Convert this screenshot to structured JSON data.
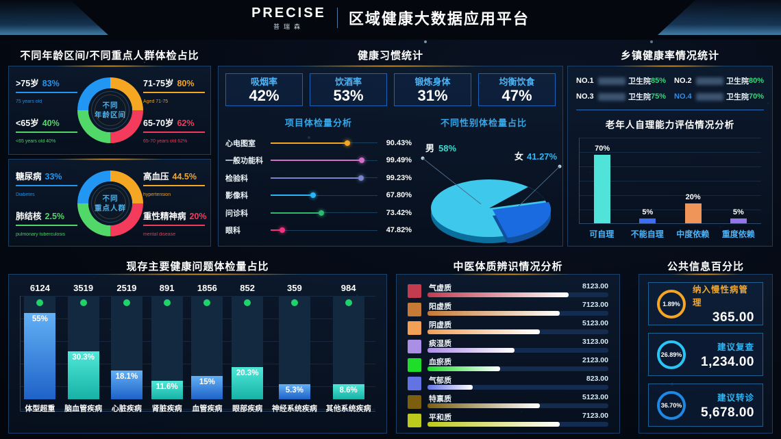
{
  "header": {
    "logo": "PRECISE",
    "logo_sub": "普瑞森",
    "title": "区域健康大数据应用平台"
  },
  "sections": {
    "demographics_title": "不同年龄区间/不同重点人群体检占比",
    "habits_title": "健康习惯统计",
    "township_title": "乡镇健康率情况统计",
    "problems_title": "现存主要健康问题体检量占比",
    "tcm_title": "中医体质辨识情况分析",
    "public_title": "公共信息百分比"
  },
  "age_donut": {
    "center_line1": "不同",
    "center_line2": "年龄区间",
    "items": [
      {
        "label": ">75岁",
        "value": "83%",
        "sub": "75 years old",
        "color": "#2196f3",
        "pos": "tl"
      },
      {
        "label": "71-75岁",
        "value": "80%",
        "sub": "Aged 71-75",
        "color": "#f5a623",
        "pos": "tr"
      },
      {
        "label": "<65岁",
        "value": "40%",
        "sub": "<65 years old 40%",
        "color": "#52d769",
        "pos": "bl"
      },
      {
        "label": "65-70岁",
        "value": "62%",
        "sub": "65-70 years old 62%",
        "color": "#f43b5c",
        "pos": "br"
      }
    ]
  },
  "group_donut": {
    "center_line1": "不同",
    "center_line2": "重点人群",
    "items": [
      {
        "label": "糖尿病",
        "value": "33%",
        "sub": "Diabetes",
        "color": "#2196f3",
        "pos": "tl"
      },
      {
        "label": "高血压",
        "value": "44.5%",
        "sub": "hypertension",
        "color": "#f5a623",
        "pos": "tr"
      },
      {
        "label": "肺结核",
        "value": "2.5%",
        "sub": "pulmonary tuberculosis",
        "color": "#52d769",
        "pos": "bl"
      },
      {
        "label": "重性精神病",
        "value": "20%",
        "sub": "mental disease",
        "color": "#f43b5c",
        "pos": "br"
      }
    ]
  },
  "habit_stats": [
    {
      "label": "吸烟率",
      "value": "42%"
    },
    {
      "label": "饮酒率",
      "value": "53%"
    },
    {
      "label": "锻炼身体",
      "value": "31%"
    },
    {
      "label": "均衡饮食",
      "value": "47%"
    }
  ],
  "exam": {
    "title": "项目体检量分析",
    "rows": [
      {
        "label": "心电图室",
        "value": "90.43%",
        "num": 90.43,
        "color": "#f5a623"
      },
      {
        "label": "一般功能科",
        "value": "99.49%",
        "num": 99.49,
        "color": "#d36fc8"
      },
      {
        "label": "检验科",
        "value": "99.23%",
        "num": 99.23,
        "color": "#7986cb"
      },
      {
        "label": "影像科",
        "value": "67.80%",
        "num": 67.8,
        "color": "#29b6f6"
      },
      {
        "label": "问诊科",
        "value": "73.42%",
        "num": 73.42,
        "color": "#2eb872"
      },
      {
        "label": "眼科",
        "value": "47.82%",
        "num": 47.82,
        "color": "#f5317f"
      }
    ]
  },
  "gender": {
    "title": "不同性别体检量占比",
    "male_label": "男",
    "male_value": "58%",
    "female_label": "女",
    "female_value": "41.27%"
  },
  "township": {
    "rows": [
      {
        "rank": "NO.1",
        "suffix": "卫生院",
        "value": "85%",
        "name_redacted": true
      },
      {
        "rank": "NO.2",
        "suffix": "卫生院",
        "value": "80%",
        "name_redacted": true
      },
      {
        "rank": "NO.3",
        "suffix": "卫生院",
        "value": "75%",
        "name_redacted": true
      },
      {
        "rank": "NO.4",
        "suffix": "卫生院",
        "value": "70%",
        "name_redacted": true
      }
    ]
  },
  "elderly": {
    "title": "老年人自理能力评估情况分析",
    "bars": [
      {
        "label": "可自理",
        "value": "70%",
        "num": 70,
        "color": "#4fe3da"
      },
      {
        "label": "不能自理",
        "value": "5%",
        "num": 5,
        "color": "#3d6ef5"
      },
      {
        "label": "中度依赖",
        "value": "20%",
        "num": 20,
        "color": "#f0955a"
      },
      {
        "label": "重度依赖",
        "value": "5%",
        "num": 5,
        "color": "#9575ea"
      }
    ]
  },
  "problems": {
    "bars": [
      {
        "label": "体型超重",
        "count": "6124",
        "pct": "55%",
        "num": 55
      },
      {
        "label": "脑血管疾病",
        "count": "3519",
        "pct": "30.3%",
        "num": 30.3
      },
      {
        "label": "心脏疾病",
        "count": "2519",
        "pct": "18.1%",
        "num": 18.1
      },
      {
        "label": "肾脏疾病",
        "count": "891",
        "pct": "11.6%",
        "num": 11.6
      },
      {
        "label": "血管疾病",
        "count": "1856",
        "pct": "15%",
        "num": 15
      },
      {
        "label": "眼部疾病",
        "count": "852",
        "pct": "20.3%",
        "num": 20.3
      },
      {
        "label": "神经系统疾病",
        "count": "359",
        "pct": "5.3%",
        "num": 5.3
      },
      {
        "label": "其他系统疾病",
        "count": "984",
        "pct": "8.6%",
        "num": 8.6
      }
    ]
  },
  "tcm": {
    "rows": [
      {
        "label": "气虚质",
        "value": "8123.00",
        "num": 8123,
        "color": "#c23b4e"
      },
      {
        "label": "阳虚质",
        "value": "7123.00",
        "num": 7123,
        "color": "#c57a36"
      },
      {
        "label": "阴虚质",
        "value": "5123.00",
        "num": 5123,
        "color": "#f2a055"
      },
      {
        "label": "痰湿质",
        "value": "3123.00",
        "num": 3123,
        "color": "#ab8fe6"
      },
      {
        "label": "血瘀质",
        "value": "2123.00",
        "num": 2123,
        "color": "#1ede2a"
      },
      {
        "label": "气郁质",
        "value": "823.00",
        "num": 823,
        "color": "#6273e4"
      },
      {
        "label": "特禀质",
        "value": "5123.00",
        "num": 5123,
        "color": "#7c5f0e"
      },
      {
        "label": "平和质",
        "value": "7123.00",
        "num": 7123,
        "color": "#bdc91c"
      }
    ]
  },
  "public_cards": [
    {
      "label": "纳入慢性病管理",
      "value": "365.00",
      "pct": "1.89%",
      "color": "#f5a623",
      "label_color": "#f0a830"
    },
    {
      "label": "建议复查",
      "value": "1,234.00",
      "pct": "26.89%",
      "color": "#29c5f5",
      "label_color": "#29b6f6"
    },
    {
      "label": "建议转诊",
      "value": "5,678.00",
      "pct": "36.70%",
      "color": "#1e88e5",
      "label_color": "#29b6f6"
    }
  ],
  "chart_data": [
    {
      "type": "pie",
      "title": "不同年龄区间",
      "labels": [
        ">75岁",
        "71-75岁",
        "65-70岁",
        "<65岁"
      ],
      "values": [
        83,
        80,
        62,
        40
      ],
      "unit": "%",
      "colors": [
        "#2196f3",
        "#f5a623",
        "#f43b5c",
        "#52d769"
      ],
      "legend_position": "around"
    },
    {
      "type": "pie",
      "title": "不同重点人群",
      "labels": [
        "糖尿病",
        "高血压",
        "重性精神病",
        "肺结核"
      ],
      "values": [
        33,
        44.5,
        20,
        2.5
      ],
      "unit": "%",
      "colors": [
        "#2196f3",
        "#f5a623",
        "#f43b5c",
        "#52d769"
      ],
      "legend_position": "around"
    },
    {
      "type": "table",
      "title": "健康习惯统计",
      "rows": [
        [
          "吸烟率",
          "42%"
        ],
        [
          "饮酒率",
          "53%"
        ],
        [
          "锻炼身体",
          "31%"
        ],
        [
          "均衡饮食",
          "47%"
        ]
      ]
    },
    {
      "type": "bar",
      "title": "项目体检量分析",
      "orientation": "horizontal-lollipop",
      "categories": [
        "心电图室",
        "一般功能科",
        "检验科",
        "影像科",
        "问诊科",
        "眼科"
      ],
      "values": [
        90.43,
        99.49,
        99.23,
        67.8,
        73.42,
        47.82
      ],
      "unit": "%"
    },
    {
      "type": "pie",
      "title": "不同性别体检量占比",
      "labels": [
        "男",
        "女"
      ],
      "values": [
        58,
        41.27
      ],
      "unit": "%",
      "colors": [
        "#3ec9ec",
        "#1b6be0"
      ]
    },
    {
      "type": "table",
      "title": "乡镇健康率情况统计",
      "rows": [
        [
          "NO.1",
          "卫生院",
          "85%"
        ],
        [
          "NO.2",
          "卫生院",
          "80%"
        ],
        [
          "NO.3",
          "卫生院",
          "75%"
        ],
        [
          "NO.4",
          "卫生院",
          "70%"
        ]
      ]
    },
    {
      "type": "bar",
      "title": "老年人自理能力评估情况分析",
      "categories": [
        "可自理",
        "不能自理",
        "中度依赖",
        "重度依赖"
      ],
      "values": [
        70,
        5,
        20,
        5
      ],
      "unit": "%",
      "ylim": [
        0,
        100
      ],
      "grid": true
    },
    {
      "type": "bar",
      "title": "现存主要健康问题体检量占比",
      "categories": [
        "体型超重",
        "脑血管疾病",
        "心脏疾病",
        "肾脏疾病",
        "血管疾病",
        "眼部疾病",
        "神经系统疾病",
        "其他系统疾病"
      ],
      "counts": [
        6124,
        3519,
        2519,
        891,
        1856,
        852,
        359,
        984
      ],
      "percentages": [
        55,
        30.3,
        18.1,
        11.6,
        15,
        20.3,
        5.3,
        8.6
      ],
      "grid": true
    },
    {
      "type": "bar",
      "title": "中医体质辨识情况分析",
      "orientation": "horizontal",
      "categories": [
        "气虚质",
        "阳虚质",
        "阴虚质",
        "痰湿质",
        "血瘀质",
        "气郁质",
        "特禀质",
        "平和质"
      ],
      "values": [
        8123,
        7123,
        5123,
        3123,
        2123,
        823,
        5123,
        7123
      ]
    },
    {
      "type": "table",
      "title": "公共信息百分比",
      "rows": [
        [
          "纳入慢性病管理",
          "1.89%",
          "365.00"
        ],
        [
          "建议复查",
          "26.89%",
          "1,234.00"
        ],
        [
          "建议转诊",
          "36.70%",
          "5,678.00"
        ]
      ]
    }
  ]
}
